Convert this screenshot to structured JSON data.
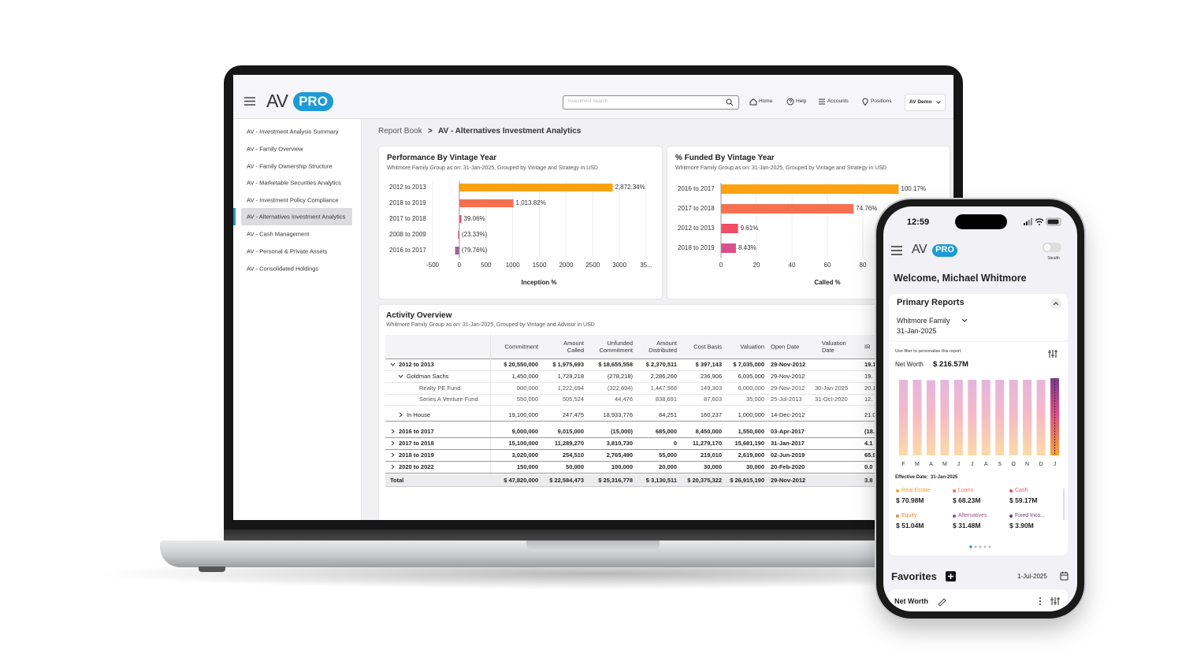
{
  "laptop": {
    "header": {
      "logo": "AV",
      "logo_badge": "PRO",
      "search_placeholder": "Investment Search",
      "nav": [
        "Home",
        "Help",
        "Accounts",
        "Positions"
      ],
      "account": "AV Demo"
    },
    "sidebar": {
      "items": [
        "AV - Investment Analysis Summary",
        "AV - Family Overview",
        "AV - Family Ownership Structure",
        "AV - Marketable Securities Analytics",
        "AV - Investment Policy Compliance",
        "AV - Alternatives Investment Analytics",
        "AV - Cash Management",
        "AV - Personal & Private Assets",
        "AV - Consolidated Holdings"
      ],
      "selected": 5
    },
    "breadcrumb": {
      "parent": "Report Book",
      "separator": ">",
      "current": "AV - Alternatives Investment Analytics"
    },
    "charts": [
      {
        "type": "bar",
        "orientation": "horizontal",
        "title": "Performance By Vintage Year",
        "subtitle": "Whitmore Family Group as on: 31-Jan-2025, Grouped by Vintage and Strategy in USD",
        "categories": [
          "2012 to 2013",
          "2018 to 2019",
          "2017 to 2018",
          "2008 to 2009",
          "2016 to 2017"
        ],
        "values": [
          2872.34,
          1013.82,
          39.06,
          -23.33,
          -79.76
        ],
        "value_labels": [
          "2,872.34%",
          "1,013.82%",
          "39.06%",
          "(23.33%)",
          "(79.76%)"
        ],
        "colors": [
          "#ffa20f",
          "#f7704f",
          "#f04d66",
          "#d9508a",
          "#a0649a"
        ],
        "xlim": [
          -500,
          3500
        ],
        "xticks": [
          -500,
          0,
          500,
          1000,
          1500,
          2000,
          2500,
          3000,
          {
            "value": 3500,
            "label": "35..."
          }
        ],
        "xlabel": "Inception %",
        "grid": true
      },
      {
        "type": "bar",
        "orientation": "horizontal",
        "title": "% Funded By Vintage Year",
        "subtitle": "Whitmore Family Group as on: 31-Jan-2025, Grouped by Vintage and Strategy in USD",
        "categories": [
          "2016 to 2017",
          "2017 to 2018",
          "2012 to 2013",
          "2018 to 2019"
        ],
        "values": [
          100.17,
          74.76,
          9.61,
          8.43
        ],
        "value_labels": [
          "100.17%",
          "74.76%",
          "9.61%",
          "8.43%"
        ],
        "colors": [
          "#ffa20f",
          "#f7704f",
          "#f04d66",
          "#d9508a"
        ],
        "xlim": [
          0,
          120
        ],
        "xticks": [
          0,
          20,
          40,
          60,
          80
        ],
        "xlabel": "Called %",
        "grid": true
      }
    ],
    "table": {
      "title": "Activity Overview",
      "subtitle": "Whitmore Family Group as on: 31-Jan-2025, Grouped by Vintage and Advisor in USD",
      "columns": [
        "Commitment",
        "Amount Called",
        "Unfunded Commitment",
        "Amount Distributed",
        "Cost Basis",
        "Valuation",
        "Open Date",
        "Valuation Date",
        "IR"
      ],
      "rows": [
        {
          "label": "2012 to 2013",
          "cells": [
            "$ 20,550,000",
            "$ 1,975,693",
            "$ 18,655,558",
            "$ 2,370,511",
            "$ 397,143",
            "$ 7,035,000",
            "29-Nov-2012",
            null,
            "19.1"
          ]
        },
        {
          "label": "Goldman Sachs",
          "cells": [
            "1,450,000",
            "1,728,218",
            "(278,218)",
            "2,286,260",
            "236,906",
            "6,035,000",
            "29-Nov-2012",
            null,
            "19."
          ]
        },
        {
          "label": "Realty PE Fund",
          "cells": [
            "900,000",
            "1,222,694",
            "(322,694)",
            "1,447,568",
            "149,303",
            "6,000,000",
            "29-Nov-2012",
            "30-Jan-2025",
            "20.1"
          ]
        },
        {
          "label": "Series A Venture Fund",
          "cells": [
            "550,000",
            "505,524",
            "44,476",
            "838,691",
            "87,603",
            "35,000",
            "25-Jul-2013",
            "31-Oct-2020",
            "12."
          ]
        },
        {
          "label": "In House",
          "cells": [
            "19,100,000",
            "247,475",
            "18,933,776",
            "84,251",
            "160,237",
            "1,000,000",
            "14-Dec-2012",
            null,
            "21.0"
          ]
        },
        {
          "label": "2016 to 2017",
          "cells": [
            "9,000,000",
            "9,015,000",
            "(15,000)",
            "685,000",
            "8,450,000",
            "1,550,000",
            "03-Apr-2017",
            null,
            "(18.6"
          ]
        },
        {
          "label": "2017 to 2018",
          "cells": [
            "15,100,000",
            "11,289,270",
            "3,810,730",
            "0",
            "11,279,170",
            "15,681,190",
            "31-Jan-2017",
            null,
            "4.1"
          ]
        },
        {
          "label": "2018 to 2019",
          "cells": [
            "3,020,000",
            "254,510",
            "2,765,490",
            "55,000",
            "219,010",
            "2,619,000",
            "02-Jun-2019",
            null,
            "65.9"
          ]
        },
        {
          "label": "2020 to 2022",
          "cells": [
            "150,000",
            "50,000",
            "100,000",
            "20,000",
            "30,000",
            "30,000",
            "20-Feb-2020",
            null,
            "0.0"
          ]
        }
      ],
      "total": {
        "label": "Total",
        "cells": [
          "$ 47,820,000",
          "$ 22,584,473",
          "$ 25,316,778",
          "$ 3,130,511",
          "$ 20,375,322",
          "$ 26,915,190",
          "29-Nov-2012",
          null,
          "3.8"
        ]
      }
    }
  },
  "phone": {
    "time": "12:59",
    "logo": "AV",
    "logo_badge": "PRO",
    "toggle_label": "Stealth",
    "welcome": "Welcome, Michael Whitmore",
    "primary_reports": {
      "title": "Primary Reports",
      "entity": "Whitmore Family",
      "date": "31-Jan-2025",
      "filter_hint": "Use filter to personalise this report",
      "metric": "Net Worth",
      "metric_value": "$ 216.57M",
      "chart": {
        "type": "bar",
        "categories": [
          "F",
          "M",
          "A",
          "M",
          "J",
          "J",
          "A",
          "S",
          "O",
          "N",
          "D",
          "J"
        ],
        "values": [
          212,
          212,
          211,
          212,
          212,
          212,
          212,
          212,
          212,
          212,
          212,
          216.57
        ]
      },
      "effective_date": "Effective Date:  31-Jan-2025",
      "legend": [
        {
          "name": "Real Estate",
          "value": "$ 70.98M",
          "color": "#f5a02a"
        },
        {
          "name": "Loans",
          "value": "$ 68.23M",
          "color": "#f7704f"
        },
        {
          "name": "Cash",
          "value": "$ 59.17M",
          "color": "#e8506b"
        },
        {
          "name": "Equity",
          "value": "$ 51.04M",
          "color": "#e2873f"
        },
        {
          "name": "Alternatives",
          "value": "$ 31.48M",
          "color": "#9b4f8f"
        },
        {
          "name": "Fixed Inco...",
          "value": "$ 3.90M",
          "color": "#6e3a78"
        }
      ]
    },
    "favorites": {
      "title": "Favorites",
      "date": "1-Jul-2025",
      "item": "Net Worth"
    }
  }
}
